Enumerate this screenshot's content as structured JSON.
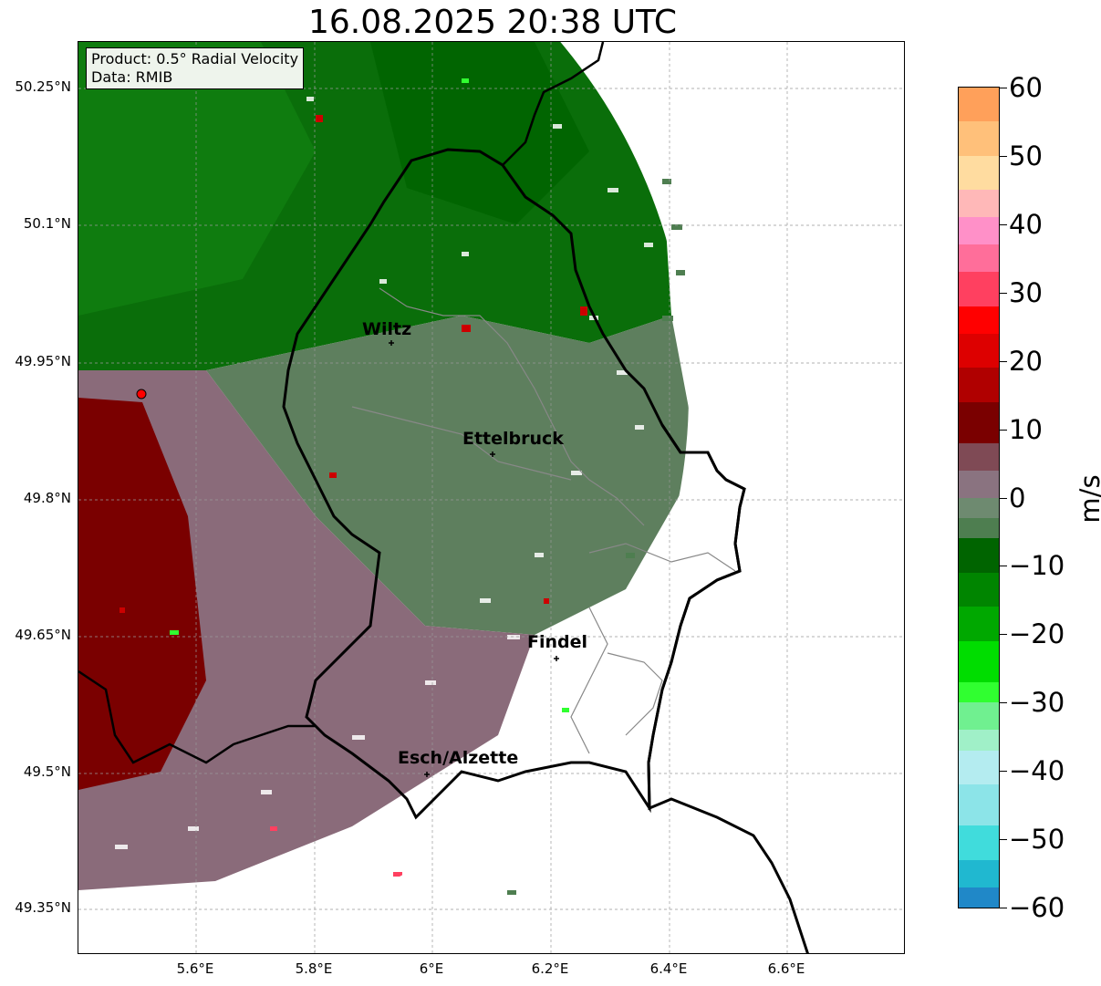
{
  "title": "16.08.2025 20:38 UTC",
  "info": {
    "product": "Product: 0.5° Radial Velocity",
    "source": "Data: RMIB"
  },
  "axes": {
    "lat_ticks": [
      "50.25°N",
      "50.1°N",
      "49.95°N",
      "49.8°N",
      "49.65°N",
      "49.5°N",
      "49.35°N"
    ],
    "lon_ticks": [
      "5.6°E",
      "5.8°E",
      "6°E",
      "6.2°E",
      "6.4°E",
      "6.6°E"
    ]
  },
  "cities": [
    {
      "name": "Wiltz"
    },
    {
      "name": "Ettelbruck"
    },
    {
      "name": "Findel"
    },
    {
      "name": "Esch/Alzette"
    }
  ],
  "colorbar": {
    "unit": "m/s",
    "tick_labels": [
      "60",
      "50",
      "40",
      "30",
      "20",
      "10",
      "0",
      "−10",
      "−20",
      "−30",
      "−40",
      "−50",
      "−60"
    ],
    "range": [
      -60,
      60
    ],
    "stops": [
      {
        "from": 55,
        "to": 60,
        "color": "#ffa05a"
      },
      {
        "from": 50,
        "to": 55,
        "color": "#ffc07a"
      },
      {
        "from": 45,
        "to": 50,
        "color": "#ffdca0"
      },
      {
        "from": 41,
        "to": 45,
        "color": "#ffb8b8"
      },
      {
        "from": 37,
        "to": 41,
        "color": "#ff90c8"
      },
      {
        "from": 33,
        "to": 37,
        "color": "#ff6e9a"
      },
      {
        "from": 28,
        "to": 33,
        "color": "#ff4060"
      },
      {
        "from": 24,
        "to": 28,
        "color": "#ff0000"
      },
      {
        "from": 19,
        "to": 24,
        "color": "#dd0000"
      },
      {
        "from": 14,
        "to": 19,
        "color": "#b00000"
      },
      {
        "from": 8,
        "to": 14,
        "color": "#7a0000"
      },
      {
        "from": 4,
        "to": 8,
        "color": "#7f4a55"
      },
      {
        "from": 0,
        "to": 4,
        "color": "#8a7380"
      },
      {
        "from": -3,
        "to": 0,
        "color": "#6e8a70"
      },
      {
        "from": -6,
        "to": -3,
        "color": "#4e7e50"
      },
      {
        "from": -11,
        "to": -6,
        "color": "#006400"
      },
      {
        "from": -16,
        "to": -11,
        "color": "#008500"
      },
      {
        "from": -21,
        "to": -16,
        "color": "#00a800"
      },
      {
        "from": -27,
        "to": -21,
        "color": "#00dd00"
      },
      {
        "from": -30,
        "to": -27,
        "color": "#30ff30"
      },
      {
        "from": -34,
        "to": -30,
        "color": "#70f090"
      },
      {
        "from": -37,
        "to": -34,
        "color": "#a0f0c8"
      },
      {
        "from": -42,
        "to": -37,
        "color": "#b4ecf0"
      },
      {
        "from": -48,
        "to": -42,
        "color": "#8ce4e8"
      },
      {
        "from": -53,
        "to": -48,
        "color": "#40dcdc"
      },
      {
        "from": -57,
        "to": -53,
        "color": "#20b8d0"
      },
      {
        "from": -60,
        "to": -57,
        "color": "#2088c8"
      }
    ]
  },
  "colors": {
    "inbound_green": "#1f7a1f",
    "neutral_green": "#5e7f5e",
    "outbound_mauve": "#8a6b7a",
    "outbound_red": "#7a0000",
    "radar_site": "#ff0000"
  }
}
